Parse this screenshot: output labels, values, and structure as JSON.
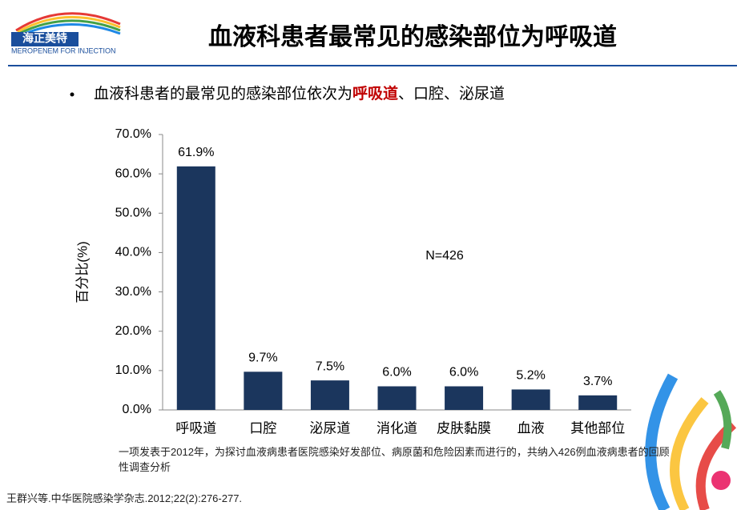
{
  "header": {
    "logo_text": "海正美特",
    "logo_subtitle": "MEROPENEM FOR INJECTION",
    "title": "血液科患者最常见的感染部位为呼吸道"
  },
  "bullet": {
    "before": "血液科患者的最常见的感染部位依次为",
    "highlight": "呼吸道",
    "after": "、口腔、泌尿道"
  },
  "chart_data": {
    "type": "bar",
    "ylabel": "百分比(%)",
    "annotation": "N=426",
    "categories": [
      "呼吸道",
      "口腔",
      "泌尿道",
      "消化道",
      "皮肤黏膜",
      "血液",
      "其他部位"
    ],
    "values": [
      61.9,
      9.7,
      7.5,
      6.0,
      6.0,
      5.2,
      3.7
    ],
    "value_labels": [
      "61.9%",
      "9.7%",
      "7.5%",
      "6.0%",
      "6.0%",
      "5.2%",
      "3.7%"
    ],
    "color": "#1b365d",
    "ylim": [
      0,
      70
    ],
    "yticks": [
      {
        "value": 0,
        "label": "0.0%"
      },
      {
        "value": 10,
        "label": "10.0%"
      },
      {
        "value": 20,
        "label": "20.0%"
      },
      {
        "value": 30,
        "label": "30.0%"
      },
      {
        "value": 40,
        "label": "40.0%"
      },
      {
        "value": 50,
        "label": "50.0%"
      },
      {
        "value": 60,
        "label": "60.0%"
      },
      {
        "value": 70,
        "label": "70.0%"
      }
    ],
    "grid": false
  },
  "footnote": "一项发表于2012年，为探讨血液病患者医院感染好发部位、病原菌和危险因素而进行的，共纳入426例血液病患者的回顾性调查分析",
  "reference": "王群兴等.中华医院感染学杂志.2012;22(2):276-277."
}
